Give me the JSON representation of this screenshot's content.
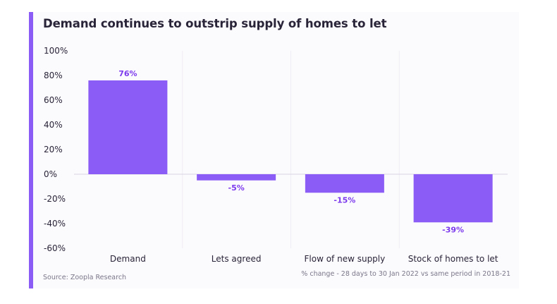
{
  "title": "Demand continues to outstrip supply of homes to let",
  "source": "Source: Zoopla Research",
  "note": "% change - 28 days to 30 Jan 2022 vs same period in 2018-21",
  "colors": {
    "bar": "#8b5cf6",
    "label": "#7c3aed",
    "accent": "#8b5cf6",
    "zero_line": "#d8d4e4",
    "grid": "#efedf4"
  },
  "chart_data": {
    "type": "bar",
    "categories": [
      "Demand",
      "Lets agreed",
      "Flow of new supply",
      "Stock of homes to let"
    ],
    "values": [
      76,
      -5,
      -15,
      -39
    ],
    "data_labels": [
      "76%",
      "-5%",
      "-15%",
      "-39%"
    ],
    "yticks": [
      100,
      80,
      60,
      40,
      20,
      0,
      -20,
      -40,
      -60
    ],
    "ytick_labels": [
      "100%",
      "80%",
      "60%",
      "40%",
      "20%",
      "0%",
      "-20%",
      "-40%",
      "-60%"
    ],
    "ylim": [
      -60,
      100
    ],
    "xlabel": "",
    "ylabel": "",
    "grid": true,
    "legend": false
  }
}
